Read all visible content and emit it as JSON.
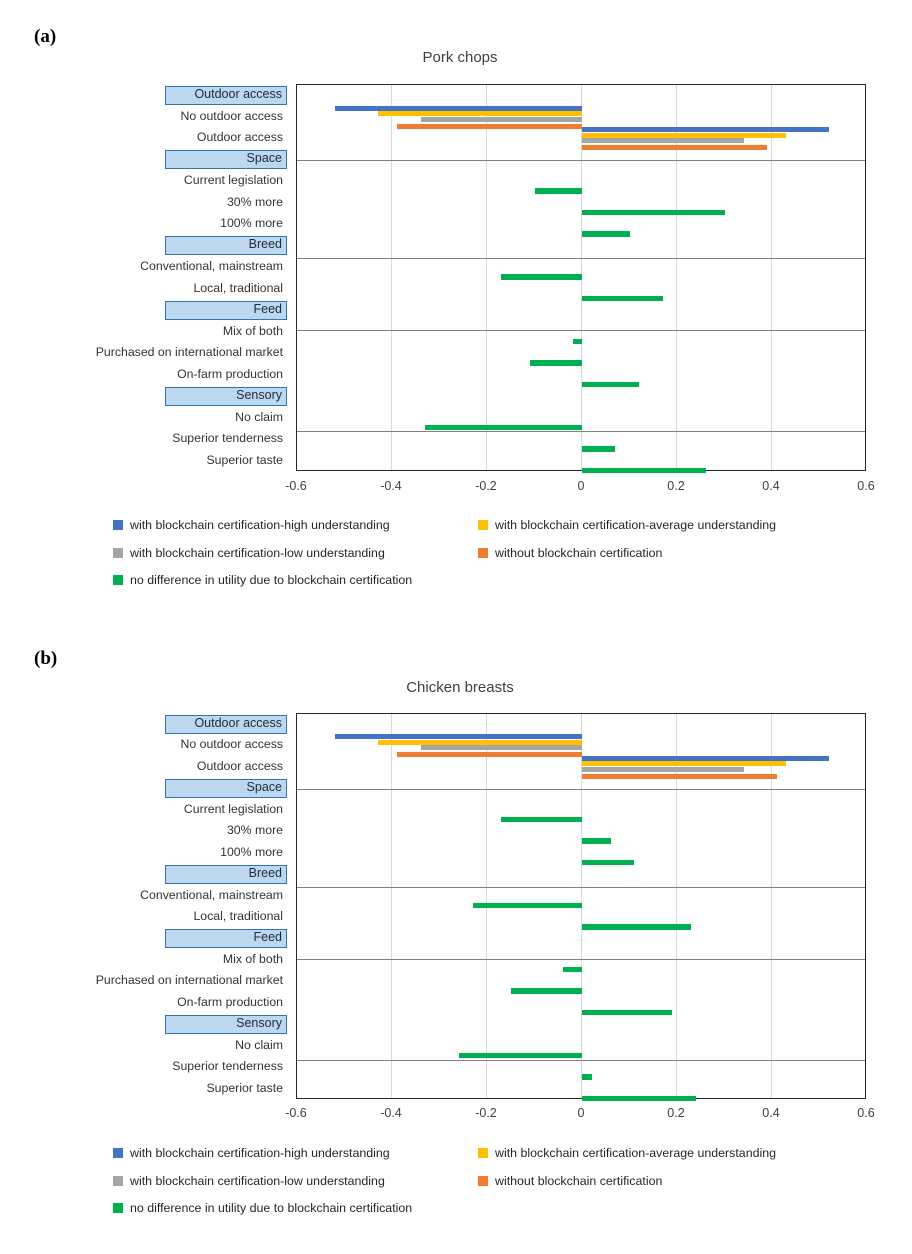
{
  "colors": {
    "blue": "#4472C4",
    "yellow": "#FFC000",
    "gray": "#A5A5A5",
    "orange": "#ED7D31",
    "green": "#00B050",
    "header_fill": "#BDD7EE",
    "header_border": "#2E75B6",
    "gridline": "#D9D9D9",
    "separator": "#808080",
    "plot_border": "#262626",
    "text": "#404040"
  },
  "series": [
    {
      "key": "high",
      "label": "with blockchain certification-high understanding",
      "color": "#4472C4"
    },
    {
      "key": "average",
      "label": "with blockchain certification-average understanding",
      "color": "#FFC000"
    },
    {
      "key": "low",
      "label": "with blockchain certification-low understanding",
      "color": "#A5A5A5"
    },
    {
      "key": "without",
      "label": "without blockchain certification",
      "color": "#ED7D31"
    },
    {
      "key": "nodiff",
      "label": "no difference in utility due to blockchain certification",
      "color": "#00B050"
    }
  ],
  "legend_rows": [
    [
      "high",
      "average"
    ],
    [
      "low",
      "without"
    ],
    [
      "nodiff"
    ]
  ],
  "axis": {
    "min": -0.6,
    "max": 0.6,
    "ticks": [
      "-0.6",
      "-0.4",
      "-0.2",
      "0",
      "0.2",
      "0.4",
      "0.6"
    ],
    "tick_values": [
      -0.6,
      -0.4,
      -0.2,
      0,
      0.2,
      0.4,
      0.6
    ],
    "grid": true
  },
  "chart_data": [
    {
      "type": "bar",
      "orientation": "horizontal",
      "panel": "(a)",
      "title": "Pork chops",
      "xlim": [
        -0.6,
        0.6
      ],
      "legend_position": "bottom",
      "groups": [
        {
          "header": "Outdoor access",
          "items": [
            {
              "label": "No outdoor access",
              "values": {
                "high": -0.52,
                "average": -0.43,
                "low": -0.34,
                "without": -0.39
              }
            },
            {
              "label": "Outdoor access",
              "values": {
                "high": 0.52,
                "average": 0.43,
                "low": 0.34,
                "without": 0.39
              }
            }
          ]
        },
        {
          "header": "Space",
          "items": [
            {
              "label": "Current legislation",
              "values": {
                "nodiff": -0.1
              }
            },
            {
              "label": "30% more",
              "values": {
                "nodiff": 0.3
              }
            },
            {
              "label": "100% more",
              "values": {
                "nodiff": 0.1
              }
            }
          ]
        },
        {
          "header": "Breed",
          "items": [
            {
              "label": "Conventional, mainstream",
              "values": {
                "nodiff": -0.17
              }
            },
            {
              "label": "Local, traditional",
              "values": {
                "nodiff": 0.17
              }
            }
          ]
        },
        {
          "header": "Feed",
          "items": [
            {
              "label": "Mix of both",
              "values": {
                "nodiff": -0.02
              }
            },
            {
              "label": "Purchased on international market",
              "values": {
                "nodiff": -0.11
              }
            },
            {
              "label": "On-farm production",
              "values": {
                "nodiff": 0.12
              }
            }
          ]
        },
        {
          "header": "Sensory",
          "items": [
            {
              "label": "No claim",
              "values": {
                "nodiff": -0.33
              }
            },
            {
              "label": "Superior tenderness",
              "values": {
                "nodiff": 0.07
              }
            },
            {
              "label": "Superior taste",
              "values": {
                "nodiff": 0.26
              }
            }
          ]
        }
      ]
    },
    {
      "type": "bar",
      "orientation": "horizontal",
      "panel": "(b)",
      "title": "Chicken breasts",
      "xlim": [
        -0.6,
        0.6
      ],
      "legend_position": "bottom",
      "groups": [
        {
          "header": "Outdoor access",
          "items": [
            {
              "label": "No outdoor access",
              "values": {
                "high": -0.52,
                "average": -0.43,
                "low": -0.34,
                "without": -0.39
              }
            },
            {
              "label": "Outdoor access",
              "values": {
                "high": 0.52,
                "average": 0.43,
                "low": 0.34,
                "without": 0.41
              }
            }
          ]
        },
        {
          "header": "Space",
          "items": [
            {
              "label": "Current legislation",
              "values": {
                "nodiff": -0.17
              }
            },
            {
              "label": "30% more",
              "values": {
                "nodiff": 0.06
              }
            },
            {
              "label": "100% more",
              "values": {
                "nodiff": 0.11
              }
            }
          ]
        },
        {
          "header": "Breed",
          "items": [
            {
              "label": "Conventional, mainstream",
              "values": {
                "nodiff": -0.23
              }
            },
            {
              "label": "Local, traditional",
              "values": {
                "nodiff": 0.23
              }
            }
          ]
        },
        {
          "header": "Feed",
          "items": [
            {
              "label": "Mix of both",
              "values": {
                "nodiff": -0.04
              }
            },
            {
              "label": "Purchased on international market",
              "values": {
                "nodiff": -0.15
              }
            },
            {
              "label": "On-farm production",
              "values": {
                "nodiff": 0.19
              }
            }
          ]
        },
        {
          "header": "Sensory",
          "items": [
            {
              "label": "No claim",
              "values": {
                "nodiff": -0.26
              }
            },
            {
              "label": "Superior tenderness",
              "values": {
                "nodiff": 0.02
              }
            },
            {
              "label": "Superior taste",
              "values": {
                "nodiff": 0.24
              }
            }
          ]
        }
      ]
    }
  ]
}
